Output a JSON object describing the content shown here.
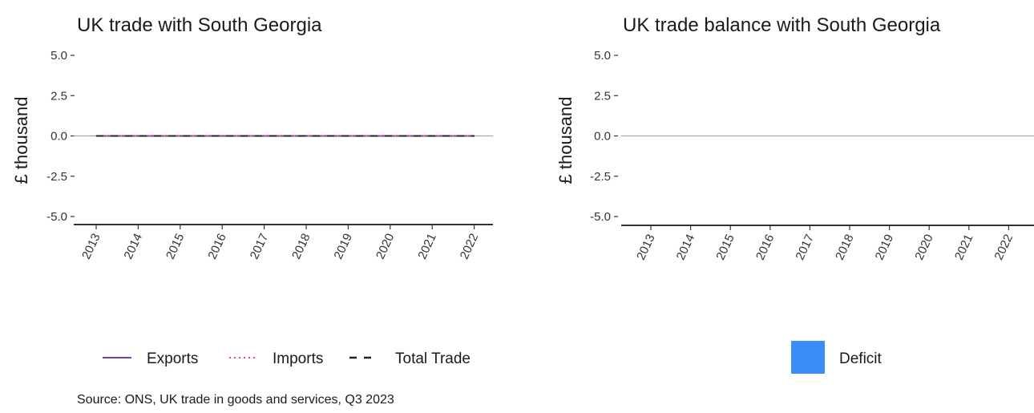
{
  "source": "Source: ONS, UK trade in goods and services, Q3 2023",
  "chart_data": [
    {
      "type": "line",
      "title": "UK trade with South Georgia",
      "ylabel": "£ thousand",
      "xlabel": "",
      "x": [
        "2013",
        "2014",
        "2015",
        "2016",
        "2017",
        "2018",
        "2019",
        "2020",
        "2021",
        "2022"
      ],
      "ylim": [
        -5.0,
        5.0
      ],
      "yticks": [
        "5.0",
        "2.5",
        "0.0",
        "-2.5",
        "-5.0"
      ],
      "series": [
        {
          "name": "Exports",
          "values": [
            0,
            0,
            0,
            0,
            0,
            0,
            0,
            0,
            0,
            0
          ],
          "color": "#7b3f9e",
          "style": "solid"
        },
        {
          "name": "Imports",
          "values": [
            0,
            0,
            0,
            0,
            0,
            0,
            0,
            0,
            0,
            0
          ],
          "color": "#e8456b",
          "style": "dotted"
        },
        {
          "name": "Total Trade",
          "values": [
            0,
            0,
            0,
            0,
            0,
            0,
            0,
            0,
            0,
            0
          ],
          "color": "#222222",
          "style": "dashed"
        }
      ],
      "legend": "bottom",
      "grid": false
    },
    {
      "type": "bar",
      "title": "UK trade balance with South Georgia",
      "ylabel": "£ thousand",
      "xlabel": "",
      "categories": [
        "2013",
        "2014",
        "2015",
        "2016",
        "2017",
        "2018",
        "2019",
        "2020",
        "2021",
        "2022"
      ],
      "values": [
        0,
        0,
        0,
        0,
        0,
        0,
        0,
        0,
        0,
        0
      ],
      "ylim": [
        -5.0,
        5.0
      ],
      "yticks": [
        "5.0",
        "2.5",
        "0.0",
        "-2.5",
        "-5.0"
      ],
      "series": [
        {
          "name": "Deficit",
          "color": "#3a8ef6"
        }
      ],
      "legend": "bottom",
      "grid": false
    }
  ]
}
